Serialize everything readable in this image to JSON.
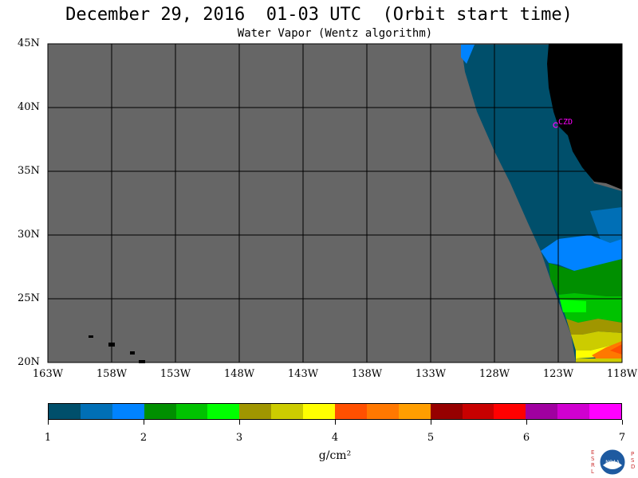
{
  "header": {
    "title": "December 29, 2016  01-03 UTC  (Orbit start time)",
    "subtitle": "Water Vapor (Wentz algorithm)"
  },
  "map": {
    "lat_labels": [
      "45N",
      "40N",
      "35N",
      "30N",
      "25N",
      "20N"
    ],
    "lon_labels": [
      "163W",
      "158W",
      "153W",
      "148W",
      "143W",
      "138W",
      "133W",
      "128W",
      "123W",
      "118W"
    ],
    "station_label": "CZD",
    "colors": {
      "no_data": "#666666",
      "land": "#000000",
      "grid": "#000000",
      "station": "#ff00ff"
    }
  },
  "colorbar": {
    "ticks": [
      "1",
      "2",
      "3",
      "4",
      "5",
      "6",
      "7"
    ],
    "unit": "g/cm²",
    "colors": [
      "#004f6b",
      "#006fb6",
      "#0083ff",
      "#008f00",
      "#00c200",
      "#00ff00",
      "#a09600",
      "#cccc00",
      "#ffff00",
      "#ff5000",
      "#ff7800",
      "#ff9e00",
      "#960000",
      "#c80000",
      "#ff0000",
      "#a000a0",
      "#d000d0",
      "#ff00ff"
    ]
  },
  "logo": {
    "left_letters": "ESRL",
    "right_letters": "PSD",
    "center_text": "NOAA"
  }
}
